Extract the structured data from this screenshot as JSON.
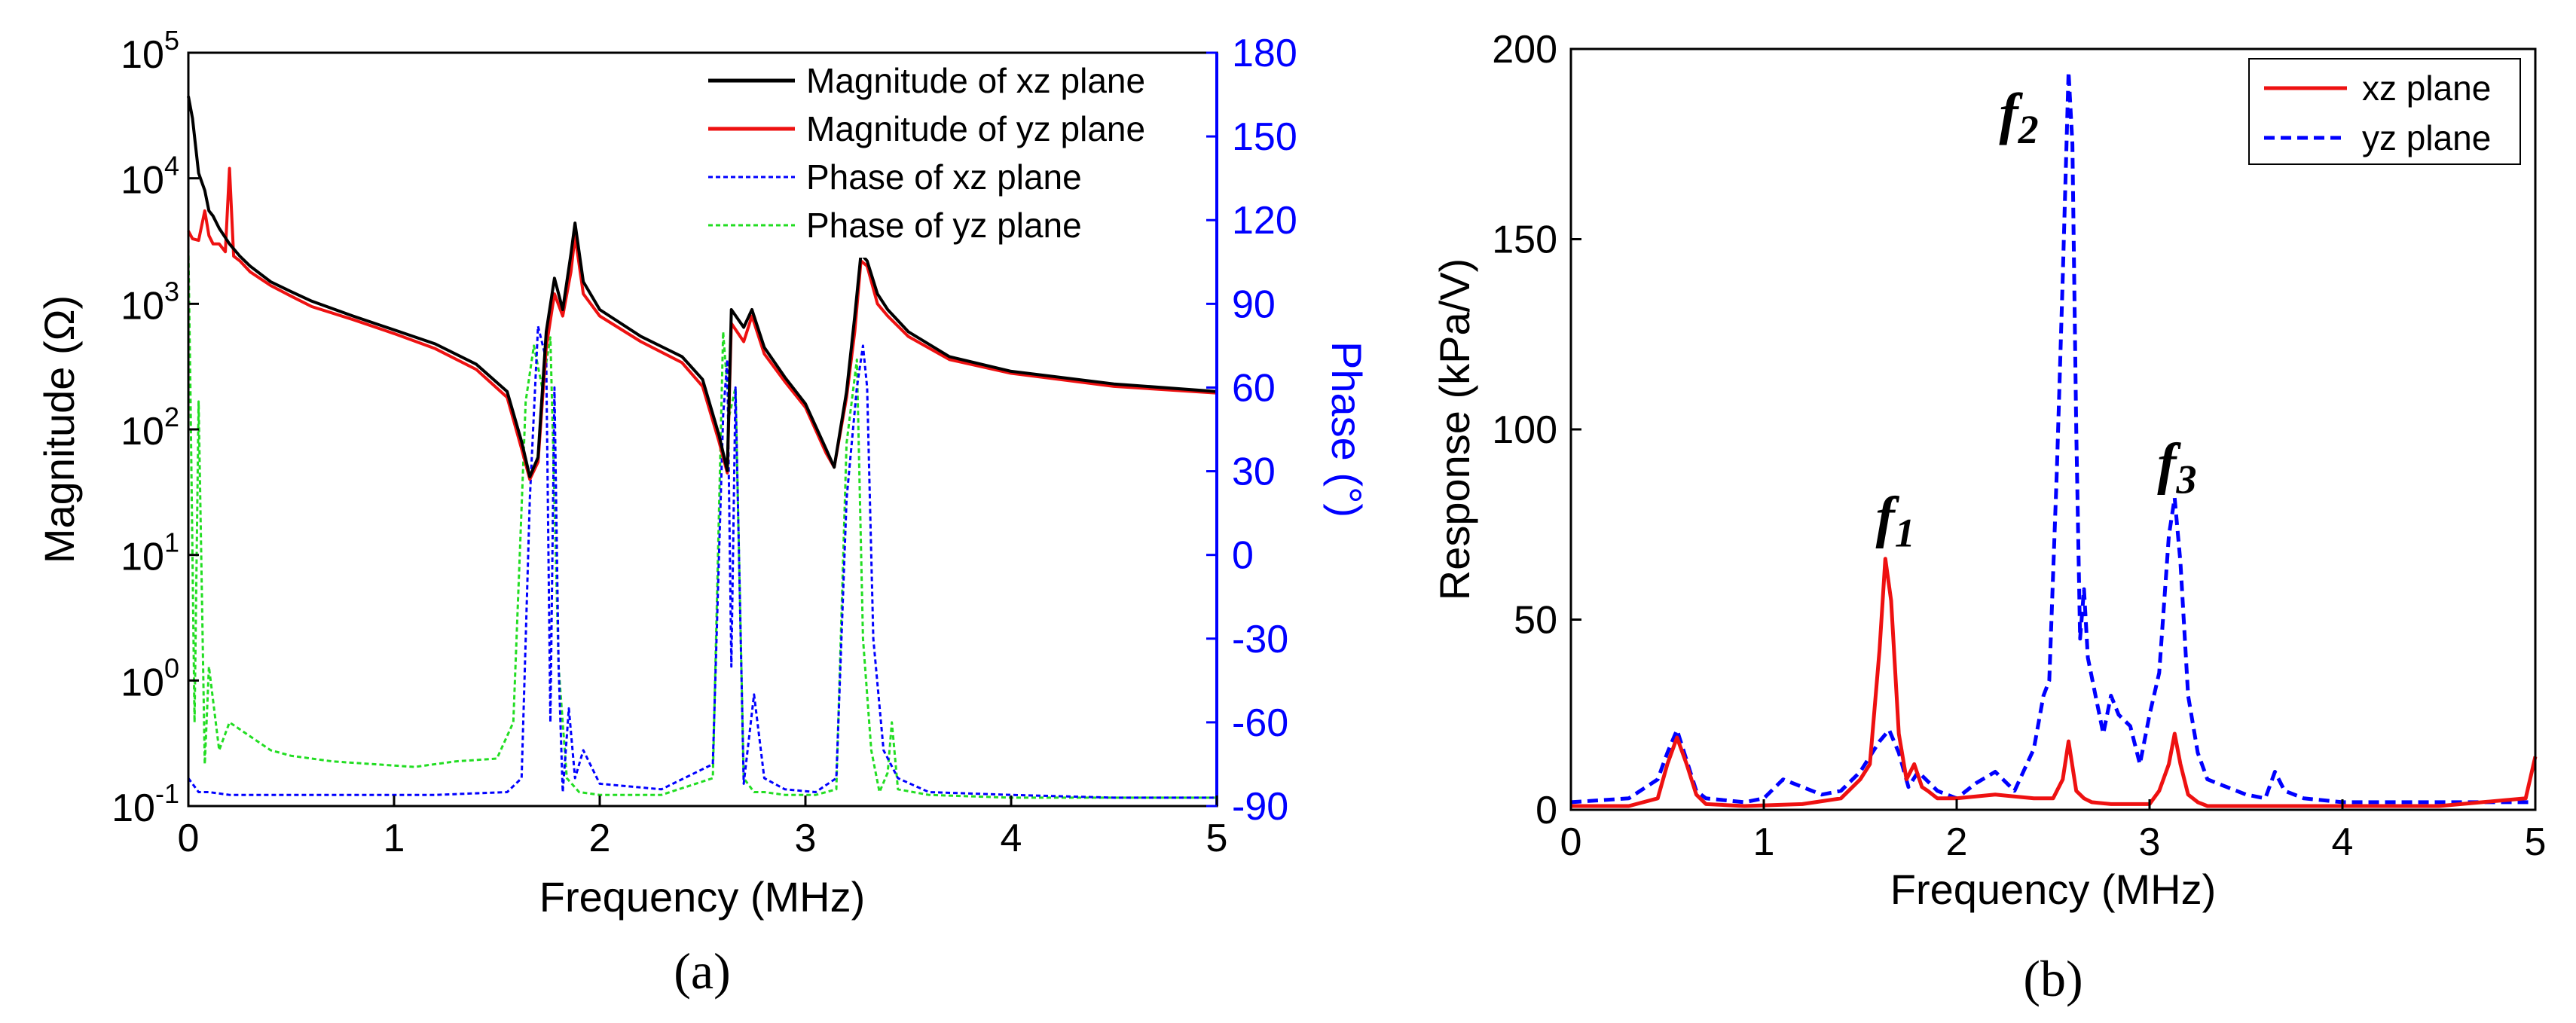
{
  "colors": {
    "black": "#000000",
    "red": "#ee1111",
    "blue": "#0000ff",
    "green": "#22dd22",
    "axis_blue": "#0000ff"
  },
  "chart_data": [
    {
      "id": "a",
      "type": "line",
      "caption": "(a)",
      "xlabel": "Frequency (MHz)",
      "ylabel_left": "Magnitude (Ω)",
      "ylabel_right": "Phase (°)",
      "xlim": [
        0,
        5
      ],
      "xticks": [
        "0",
        "1",
        "2",
        "3",
        "4",
        "5"
      ],
      "ylim_left_log10": [
        -1,
        5
      ],
      "yticks_left": [
        {
          "base": "10",
          "exp": "-1"
        },
        {
          "base": "10",
          "exp": "0"
        },
        {
          "base": "10",
          "exp": "1"
        },
        {
          "base": "10",
          "exp": "2"
        },
        {
          "base": "10",
          "exp": "3"
        },
        {
          "base": "10",
          "exp": "4"
        },
        {
          "base": "10",
          "exp": "5"
        }
      ],
      "ylim_right": [
        -90,
        180
      ],
      "yticks_right": [
        "-90",
        "-60",
        "-30",
        "0",
        "30",
        "60",
        "90",
        "120",
        "150",
        "180"
      ],
      "legend": [
        "Magnitude of xz plane",
        "Magnitude of yz plane",
        "Phase of xz plane",
        "Phase of yz plane"
      ],
      "series": [
        {
          "name": "Magnitude of xz plane",
          "axis": "left",
          "color": "black",
          "style": "solid",
          "x": [
            0,
            0.02,
            0.05,
            0.08,
            0.1,
            0.12,
            0.15,
            0.2,
            0.25,
            0.3,
            0.4,
            0.5,
            0.6,
            0.8,
            1.0,
            1.2,
            1.4,
            1.55,
            1.62,
            1.66,
            1.7,
            1.74,
            1.78,
            1.82,
            1.86,
            1.88,
            1.92,
            2.0,
            2.2,
            2.4,
            2.5,
            2.58,
            2.62,
            2.64,
            2.7,
            2.74,
            2.8,
            2.9,
            3.0,
            3.1,
            3.14,
            3.2,
            3.24,
            3.27,
            3.3,
            3.35,
            3.4,
            3.5,
            3.7,
            4.0,
            4.5,
            5.0
          ],
          "y": [
            45000,
            30000,
            11000,
            8000,
            5500,
            5000,
            4000,
            3000,
            2400,
            2000,
            1500,
            1250,
            1050,
            800,
            620,
            480,
            330,
            200,
            80,
            42,
            60,
            600,
            1600,
            900,
            2500,
            4400,
            1500,
            900,
            550,
            380,
            250,
            90,
            47,
            900,
            650,
            900,
            450,
            260,
            160,
            70,
            50,
            200,
            800,
            2500,
            2200,
            1200,
            900,
            600,
            380,
            290,
            230,
            200
          ]
        },
        {
          "name": "Magnitude of yz plane",
          "axis": "left",
          "color": "red",
          "style": "solid",
          "x": [
            0,
            0.02,
            0.05,
            0.08,
            0.1,
            0.12,
            0.15,
            0.18,
            0.2,
            0.22,
            0.25,
            0.3,
            0.4,
            0.5,
            0.6,
            0.8,
            1.0,
            1.2,
            1.4,
            1.55,
            1.62,
            1.66,
            1.7,
            1.74,
            1.78,
            1.82,
            1.86,
            1.88,
            1.92,
            2.0,
            2.2,
            2.4,
            2.5,
            2.58,
            2.62,
            2.64,
            2.7,
            2.74,
            2.8,
            2.9,
            3.0,
            3.1,
            3.14,
            3.2,
            3.24,
            3.27,
            3.3,
            3.35,
            3.4,
            3.5,
            3.7,
            4.0,
            4.5,
            5.0
          ],
          "y": [
            3800,
            3300,
            3200,
            5500,
            3500,
            3000,
            3000,
            2600,
            12000,
            2400,
            2200,
            1800,
            1400,
            1150,
            950,
            750,
            580,
            440,
            300,
            180,
            70,
            40,
            55,
            450,
            1200,
            800,
            1800,
            3500,
            1200,
            800,
            500,
            340,
            220,
            80,
            45,
            700,
            500,
            800,
            400,
            240,
            150,
            65,
            50,
            180,
            600,
            2200,
            2000,
            1000,
            800,
            550,
            360,
            280,
            220,
            195
          ]
        },
        {
          "name": "Phase of xz plane",
          "axis": "right",
          "color": "blue",
          "style": "dashed",
          "x": [
            0,
            0.05,
            0.1,
            0.2,
            0.4,
            0.8,
            1.2,
            1.55,
            1.62,
            1.66,
            1.7,
            1.74,
            1.76,
            1.78,
            1.8,
            1.82,
            1.85,
            1.88,
            1.92,
            2.0,
            2.3,
            2.55,
            2.6,
            2.62,
            2.64,
            2.66,
            2.7,
            2.75,
            2.8,
            2.9,
            3.05,
            3.15,
            3.2,
            3.25,
            3.28,
            3.3,
            3.33,
            3.38,
            3.45,
            3.6,
            4.0,
            4.5,
            5.0
          ],
          "y": [
            -80,
            -85,
            -85,
            -86,
            -86,
            -86,
            -86,
            -85,
            -80,
            20,
            82,
            70,
            -60,
            60,
            -40,
            -85,
            -55,
            -80,
            -70,
            -82,
            -84,
            -75,
            50,
            70,
            -40,
            60,
            -82,
            -50,
            -80,
            -84,
            -85,
            -80,
            20,
            60,
            75,
            60,
            -30,
            -70,
            -80,
            -85,
            -86,
            -87,
            -87
          ]
        },
        {
          "name": "Phase of yz plane",
          "axis": "right",
          "color": "green",
          "style": "dashed",
          "x": [
            0,
            0.01,
            0.03,
            0.05,
            0.08,
            0.1,
            0.15,
            0.2,
            0.3,
            0.4,
            0.5,
            0.7,
            0.9,
            1.1,
            1.3,
            1.5,
            1.58,
            1.64,
            1.68,
            1.72,
            1.76,
            1.8,
            1.84,
            1.9,
            2.0,
            2.3,
            2.55,
            2.6,
            2.63,
            2.66,
            2.7,
            2.75,
            2.8,
            2.9,
            3.05,
            3.15,
            3.2,
            3.25,
            3.28,
            3.32,
            3.36,
            3.4,
            3.42,
            3.45,
            3.6,
            4.0,
            4.5,
            5.0
          ],
          "y": [
            110,
            60,
            -60,
            55,
            -75,
            -40,
            -70,
            -60,
            -65,
            -70,
            -72,
            -74,
            -75,
            -76,
            -74,
            -73,
            -60,
            55,
            75,
            60,
            78,
            -40,
            -80,
            -85,
            -86,
            -86,
            -80,
            80,
            50,
            60,
            -80,
            -85,
            -85,
            -86,
            -86,
            -84,
            40,
            70,
            -30,
            -70,
            -85,
            -78,
            -60,
            -84,
            -86,
            -87,
            -87,
            -87
          ]
        }
      ]
    },
    {
      "id": "b",
      "type": "line",
      "caption": "(b)",
      "xlabel": "Frequency (MHz)",
      "ylabel": "Response (kPa/V)",
      "xlim": [
        0,
        5
      ],
      "xticks": [
        "0",
        "1",
        "2",
        "3",
        "4",
        "5"
      ],
      "ylim": [
        0,
        200
      ],
      "yticks": [
        "0",
        "50",
        "100",
        "150",
        "200"
      ],
      "legend": [
        "xz plane",
        "yz plane"
      ],
      "annotations": [
        {
          "base": "f",
          "sub": "1",
          "x": 1.58,
          "y": 72
        },
        {
          "base": "f",
          "sub": "2",
          "x": 2.22,
          "y": 178
        },
        {
          "base": "f",
          "sub": "3",
          "x": 3.04,
          "y": 86
        }
      ],
      "series": [
        {
          "name": "xz plane",
          "color": "red",
          "style": "solid",
          "x": [
            0,
            0.3,
            0.45,
            0.5,
            0.55,
            0.6,
            0.65,
            0.7,
            0.9,
            1.2,
            1.4,
            1.5,
            1.55,
            1.6,
            1.63,
            1.66,
            1.7,
            1.74,
            1.78,
            1.82,
            1.85,
            1.9,
            2.0,
            2.2,
            2.4,
            2.5,
            2.55,
            2.58,
            2.62,
            2.66,
            2.7,
            2.8,
            3.0,
            3.05,
            3.1,
            3.13,
            3.16,
            3.2,
            3.25,
            3.3,
            3.5,
            4.0,
            4.5,
            4.95,
            5.0
          ],
          "y": [
            1,
            1,
            3,
            12,
            19,
            12,
            4,
            1.5,
            1,
            1.5,
            3,
            8,
            12,
            42,
            66,
            55,
            20,
            8,
            12,
            6,
            5,
            3,
            3,
            4,
            3,
            3,
            8,
            18,
            5,
            3,
            2,
            1.5,
            1.5,
            5,
            12,
            20,
            12,
            4,
            2,
            1,
            1,
            1,
            1,
            3,
            14
          ]
        },
        {
          "name": "yz plane",
          "color": "blue",
          "style": "dashed",
          "x": [
            0,
            0.3,
            0.45,
            0.5,
            0.55,
            0.6,
            0.65,
            0.7,
            0.9,
            1.0,
            1.1,
            1.2,
            1.3,
            1.4,
            1.5,
            1.6,
            1.65,
            1.7,
            1.75,
            1.8,
            1.9,
            2.0,
            2.1,
            2.2,
            2.3,
            2.4,
            2.45,
            2.48,
            2.52,
            2.55,
            2.58,
            2.6,
            2.62,
            2.64,
            2.66,
            2.68,
            2.72,
            2.76,
            2.8,
            2.84,
            2.9,
            2.95,
            3.0,
            3.05,
            3.1,
            3.13,
            3.16,
            3.2,
            3.25,
            3.3,
            3.4,
            3.5,
            3.6,
            3.65,
            3.7,
            3.8,
            4.0,
            4.5,
            5.0
          ],
          "y": [
            2,
            3,
            8,
            15,
            21,
            13,
            5,
            3,
            2,
            3,
            8,
            6,
            4,
            5,
            10,
            18,
            21,
            15,
            6,
            10,
            5,
            3,
            7,
            10,
            5,
            16,
            30,
            34,
            90,
            140,
            194,
            175,
            100,
            45,
            58,
            40,
            30,
            20,
            30,
            25,
            22,
            12,
            25,
            36,
            72,
            82,
            65,
            30,
            15,
            8,
            6,
            4,
            3,
            10,
            5,
            3,
            2,
            2,
            2
          ]
        }
      ]
    }
  ]
}
